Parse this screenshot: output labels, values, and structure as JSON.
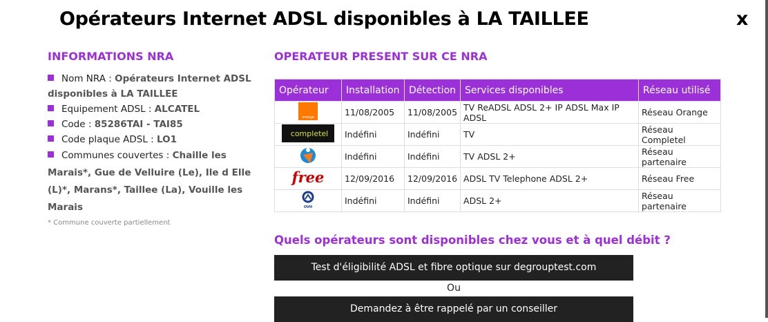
{
  "title": "Opérateurs Internet ADSL disponibles à LA TAILLEE",
  "close_label": "x",
  "info": {
    "heading": "INFORMATIONS NRA",
    "items": [
      {
        "label": "Nom NRA : ",
        "value": "Opérateurs Internet ADSL disponibles à LA TAILLEE"
      },
      {
        "label": "Equipement ADSL : ",
        "value": "ALCATEL"
      },
      {
        "label": "Code : ",
        "value": "85286TAI - TAI85"
      },
      {
        "label": "Code plaque ADSL : ",
        "value": "LO1"
      },
      {
        "label": "Communes couvertes : ",
        "value": "Chaille les Marais*, Gue de Velluire (Le), Ile d Elle (L)*, Marans*, Taillee (La), Vouille les Marais"
      }
    ],
    "note": "* Commune couverte partiellement"
  },
  "operators": {
    "heading": "OPERATEUR PRESENT SUR CE NRA",
    "columns": [
      "Opérateur",
      "Installation",
      "Détection",
      "Services disponibles",
      "Réseau utilisé"
    ],
    "rows": [
      {
        "logo": "orange",
        "installation": "11/08/2005",
        "detection": "11/08/2005",
        "services": "TV ReADSL ADSL 2+ IP ADSL Max IP ADSL",
        "reseau": "Réseau Orange"
      },
      {
        "logo": "completel",
        "installation": "Indéfini",
        "detection": "Indéfini",
        "services": "TV",
        "reseau": "Réseau Completel"
      },
      {
        "logo": "bouygues",
        "installation": "Indéfini",
        "detection": "Indéfini",
        "services": "TV ADSL 2+",
        "reseau": "Réseau partenaire"
      },
      {
        "logo": "free",
        "installation": "12/09/2016",
        "detection": "12/09/2016",
        "services": "ADSL TV Telephone ADSL 2+",
        "reseau": "Réseau Free"
      },
      {
        "logo": "OVH",
        "installation": "Indéfini",
        "detection": "Indéfini",
        "services": "ADSL 2+",
        "reseau": "Réseau partenaire"
      }
    ]
  },
  "cta": {
    "heading": "Quels opérateurs sont disponibles chez vous et à quel débit ?",
    "test_button": "Test d'éligibilité ADSL et fibre optique sur degrouptest.com",
    "or": "Ou",
    "callback_button": "Demandez à être rappelé par un conseiller"
  },
  "colors": {
    "accent": "#9b30d9",
    "button": "#222222"
  }
}
